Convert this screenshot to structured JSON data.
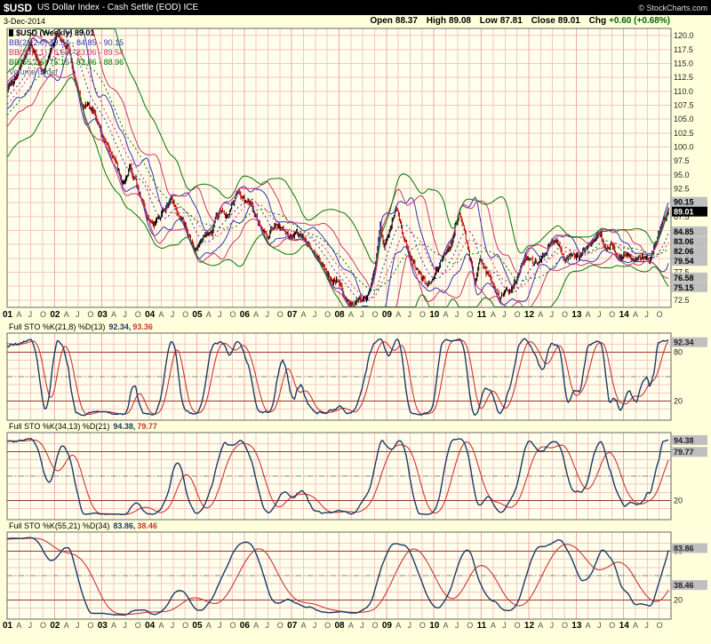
{
  "header": {
    "symbol": "$USD",
    "title": "US Dollar Index - Cash Settle (EOD) ICE",
    "copyright": "© StockCharts.com",
    "date": "3-Dec-2014",
    "quote": {
      "open_label": "Open",
      "open": "88.37",
      "high_label": "High",
      "high": "89.08",
      "low_label": "Low",
      "low": "87.81",
      "close_label": "Close",
      "close": "89.01",
      "chg_label": "Chg",
      "chg": "+0.60 (+0.68%)"
    }
  },
  "main_legend": {
    "series": "$USD (Weekly) 89.01",
    "bb21": "BB(21,2.0) 79.54 - 84.85 - 90.15",
    "bb34": "BB(34,2.1) 76.58 - 83.06 - 89.54",
    "bb55": "BB(55,2.5) 75.15 - 82.06 - 88.96",
    "volume": "Volume undef"
  },
  "sto_panels": [
    {
      "label": "Full STO %K(21,8) %D(13)",
      "k_value": "92.34,",
      "d_value": "93.36"
    },
    {
      "label": "Full STO %K(34,13) %D(21)",
      "k_value": "94.38,",
      "d_value": "79.77"
    },
    {
      "label": "Full STO %K(55,21) %D(34)",
      "k_value": "83.86,",
      "d_value": "38.46"
    }
  ],
  "chart_data": {
    "type": "candlestick",
    "title": "$USD US Dollar Index - Cash Settle (EOD) ICE, Weekly, 2001-2014",
    "x_range": [
      2001,
      2015
    ],
    "x_year_labels": [
      "01",
      "02",
      "03",
      "04",
      "05",
      "06",
      "07",
      "08",
      "09",
      "10",
      "11",
      "12",
      "13",
      "14"
    ],
    "x_month_labels": [
      "A",
      "J",
      "O"
    ],
    "main": {
      "ylim": [
        71.2,
        121.3
      ],
      "y_axis_ticks": [
        "120.0",
        "117.5",
        "115.0",
        "112.5",
        "110.0",
        "107.5",
        "105.0",
        "102.5",
        "100.0",
        "97.5",
        "95.0",
        "92.5",
        "90.0",
        "87.5",
        "85.0",
        "82.5",
        "80.0",
        "77.5",
        "75.0",
        "72.5"
      ],
      "last": {
        "open": 88.37,
        "high": 89.08,
        "low": 87.81,
        "close": 89.01
      },
      "bands": [
        {
          "name": "BB(21,2.0)",
          "period": 21,
          "mult": 2.0,
          "color": "#3333bb",
          "upper": 90.15,
          "mid": 84.85,
          "lower": 79.54
        },
        {
          "name": "BB(34,2.1)",
          "period": 34,
          "mult": 2.1,
          "color": "#cc3366",
          "upper": 89.54,
          "mid": 83.06,
          "lower": 76.58
        },
        {
          "name": "BB(55,2.5)",
          "period": 55,
          "mult": 2.5,
          "color": "#007700",
          "upper": 88.96,
          "mid": 82.06,
          "lower": 75.15
        }
      ],
      "price_boxes": [
        {
          "text": "90.15",
          "value": 90.15,
          "style": "gray"
        },
        {
          "text": "89.01",
          "value": 89.01,
          "style": "black"
        },
        {
          "text": "84.85",
          "value": 84.85,
          "style": "gray"
        },
        {
          "text": "83.06",
          "value": 83.06,
          "style": "gray"
        },
        {
          "text": "82.06",
          "value": 82.06,
          "style": "gray"
        },
        {
          "text": "79.54",
          "value": 79.54,
          "style": "gray"
        },
        {
          "text": "76.58",
          "value": 76.58,
          "style": "gray"
        },
        {
          "text": "75.15",
          "value": 75.15,
          "style": "gray"
        }
      ],
      "price_keypoints": [
        [
          1998.6,
          96.5
        ],
        [
          1998.85,
          94.5
        ],
        [
          1999.1,
          95.5
        ],
        [
          1999.4,
          97.5
        ],
        [
          1999.6,
          100.0
        ],
        [
          1999.8,
          98.0
        ],
        [
          2000.0,
          100.5
        ],
        [
          2000.2,
          103.5
        ],
        [
          2000.45,
          105.5
        ],
        [
          2000.7,
          108.0
        ],
        [
          2000.85,
          109.5
        ],
        [
          2001.0,
          110.5
        ],
        [
          2001.15,
          112.0
        ],
        [
          2001.3,
          114.5
        ],
        [
          2001.5,
          118.5
        ],
        [
          2001.62,
          116.0
        ],
        [
          2001.75,
          113.5
        ],
        [
          2001.9,
          116.5
        ],
        [
          2002.05,
          120.0
        ],
        [
          2002.15,
          119.0
        ],
        [
          2002.3,
          117.5
        ],
        [
          2002.45,
          112.0
        ],
        [
          2002.55,
          108.0
        ],
        [
          2002.7,
          107.5
        ],
        [
          2002.85,
          106.0
        ],
        [
          2003.0,
          102.0
        ],
        [
          2003.2,
          99.0
        ],
        [
          2003.45,
          93.5
        ],
        [
          2003.6,
          96.5
        ],
        [
          2003.75,
          93.0
        ],
        [
          2003.95,
          87.5
        ],
        [
          2004.1,
          85.8
        ],
        [
          2004.3,
          88.5
        ],
        [
          2004.45,
          91.0
        ],
        [
          2004.6,
          88.5
        ],
        [
          2004.8,
          85.0
        ],
        [
          2004.95,
          81.2
        ],
        [
          2005.1,
          83.5
        ],
        [
          2005.3,
          84.5
        ],
        [
          2005.5,
          89.0
        ],
        [
          2005.65,
          87.8
        ],
        [
          2005.85,
          91.8
        ],
        [
          2006.0,
          90.5
        ],
        [
          2006.15,
          89.5
        ],
        [
          2006.35,
          85.5
        ],
        [
          2006.5,
          84.2
        ],
        [
          2006.65,
          86.0
        ],
        [
          2006.8,
          85.5
        ],
        [
          2006.95,
          83.5
        ],
        [
          2007.1,
          84.8
        ],
        [
          2007.25,
          83.2
        ],
        [
          2007.4,
          81.5
        ],
        [
          2007.55,
          80.5
        ],
        [
          2007.7,
          78.0
        ],
        [
          2007.85,
          75.8
        ],
        [
          2007.95,
          76.5
        ],
        [
          2008.1,
          73.5
        ],
        [
          2008.25,
          71.8
        ],
        [
          2008.4,
          72.8
        ],
        [
          2008.55,
          72.3
        ],
        [
          2008.65,
          74.0
        ],
        [
          2008.75,
          78.0
        ],
        [
          2008.87,
          86.5
        ],
        [
          2008.95,
          82.0
        ],
        [
          2009.05,
          84.5
        ],
        [
          2009.2,
          89.0
        ],
        [
          2009.35,
          84.5
        ],
        [
          2009.5,
          80.0
        ],
        [
          2009.65,
          78.0
        ],
        [
          2009.8,
          76.0
        ],
        [
          2009.93,
          74.8
        ],
        [
          2010.05,
          78.0
        ],
        [
          2010.2,
          80.5
        ],
        [
          2010.35,
          82.0
        ],
        [
          2010.45,
          86.0
        ],
        [
          2010.55,
          88.2
        ],
        [
          2010.7,
          82.5
        ],
        [
          2010.87,
          75.8
        ],
        [
          2010.97,
          79.8
        ],
        [
          2011.1,
          77.5
        ],
        [
          2011.25,
          75.5
        ],
        [
          2011.38,
          73.0
        ],
        [
          2011.5,
          74.8
        ],
        [
          2011.62,
          73.8
        ],
        [
          2011.75,
          76.5
        ],
        [
          2011.83,
          78.5
        ],
        [
          2011.95,
          80.2
        ],
        [
          2012.1,
          79.0
        ],
        [
          2012.25,
          79.8
        ],
        [
          2012.4,
          81.8
        ],
        [
          2012.55,
          83.5
        ],
        [
          2012.65,
          82.0
        ],
        [
          2012.78,
          79.8
        ],
        [
          2012.9,
          80.5
        ],
        [
          2013.05,
          79.8
        ],
        [
          2013.2,
          82.2
        ],
        [
          2013.4,
          83.2
        ],
        [
          2013.52,
          84.5
        ],
        [
          2013.6,
          81.8
        ],
        [
          2013.72,
          82.5
        ],
        [
          2013.85,
          80.2
        ],
        [
          2014.0,
          80.5
        ],
        [
          2014.15,
          80.0
        ],
        [
          2014.3,
          79.8
        ],
        [
          2014.45,
          80.3
        ],
        [
          2014.55,
          80.0
        ],
        [
          2014.65,
          81.8
        ],
        [
          2014.75,
          84.5
        ],
        [
          2014.85,
          87.0
        ],
        [
          2014.92,
          88.5
        ],
        [
          2014.95,
          89.0
        ]
      ]
    },
    "stochastics": [
      {
        "k_period": 21,
        "k_smooth": 8,
        "d_period": 13,
        "k_last": 92.34,
        "d_last": 93.36,
        "lines": {
          "overbought": 80,
          "mid": 50,
          "oversold": 20
        },
        "axis_labels": [
          {
            "text": "80",
            "value": 80
          },
          {
            "text": "20",
            "value": 20
          }
        ],
        "boxes": [
          {
            "text": "92.34",
            "value": 92.34
          }
        ]
      },
      {
        "k_period": 34,
        "k_smooth": 13,
        "d_period": 21,
        "k_last": 94.38,
        "d_last": 79.77,
        "lines": {
          "overbought": 80,
          "mid": 50,
          "oversold": 20
        },
        "axis_labels": [
          {
            "text": "80",
            "value": 80
          },
          {
            "text": "20",
            "value": 20
          }
        ],
        "boxes": [
          {
            "text": "94.38",
            "value": 94.38
          },
          {
            "text": "79.77",
            "value": 79.77
          }
        ]
      },
      {
        "k_period": 55,
        "k_smooth": 21,
        "d_period": 34,
        "k_last": 83.86,
        "d_last": 38.46,
        "lines": {
          "overbought": 80,
          "mid": 50,
          "oversold": 20
        },
        "axis_labels": [
          {
            "text": "80",
            "value": 80
          },
          {
            "text": "20",
            "value": 20
          }
        ],
        "boxes": [
          {
            "text": "83.86",
            "value": 83.86
          },
          {
            "text": "38.46",
            "value": 38.46
          }
        ]
      }
    ],
    "colors": {
      "background": "#ffffdc",
      "plot_bg": "#ffffec",
      "grid": "#f5c6c6",
      "grid_year": "#eeaaaa",
      "border": "#666666",
      "candle_up": "#000000",
      "candle_down": "#bb0000",
      "bb21": "#3333bb",
      "bb34": "#cc3366",
      "bb55": "#007700",
      "sto_k": "#1a3a66",
      "sto_d": "#cc3333",
      "ob_os": "#993333",
      "mid": "#808080",
      "label_box": "#bfbfbf",
      "last_box_bg": "#000000"
    }
  }
}
